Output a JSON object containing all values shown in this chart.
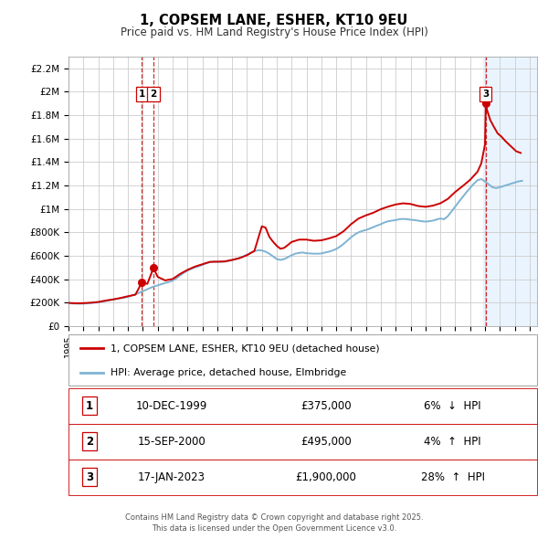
{
  "title": "1, COPSEM LANE, ESHER, KT10 9EU",
  "subtitle": "Price paid vs. HM Land Registry's House Price Index (HPI)",
  "ylabel_ticks": [
    "£0",
    "£200K",
    "£400K",
    "£600K",
    "£800K",
    "£1M",
    "£1.2M",
    "£1.4M",
    "£1.6M",
    "£1.8M",
    "£2M",
    "£2.2M"
  ],
  "ytick_vals": [
    0,
    200000,
    400000,
    600000,
    800000,
    1000000,
    1200000,
    1400000,
    1600000,
    1800000,
    2000000,
    2200000
  ],
  "xmin": 1995.0,
  "xmax": 2026.5,
  "ymin": 0,
  "ymax": 2300000,
  "legend_line1": "1, COPSEM LANE, ESHER, KT10 9EU (detached house)",
  "legend_line2": "HPI: Average price, detached house, Elmbridge",
  "line_color_red": "#cc0000",
  "line_color_blue": "#7fb3d3",
  "transactions": [
    {
      "num": 1,
      "date": "10-DEC-1999",
      "price": 375000,
      "pct": "6%",
      "dir": "↓",
      "x": 1999.94
    },
    {
      "num": 2,
      "date": "15-SEP-2000",
      "price": 495000,
      "pct": "4%",
      "dir": "↑",
      "x": 2000.71
    },
    {
      "num": 3,
      "date": "17-JAN-2023",
      "price": 1900000,
      "pct": "28%",
      "dir": "↑",
      "x": 2023.05
    }
  ],
  "footer": "Contains HM Land Registry data © Crown copyright and database right 2025.\nThis data is licensed under the Open Government Licence v3.0.",
  "bg_color": "#ffffff",
  "grid_color": "#cccccc",
  "shade_color": "#ddeeff",
  "hpi_data": [
    [
      1995.0,
      195000
    ],
    [
      1995.25,
      193000
    ],
    [
      1995.5,
      192000
    ],
    [
      1995.75,
      191000
    ],
    [
      1996.0,
      192000
    ],
    [
      1996.25,
      194000
    ],
    [
      1996.5,
      196000
    ],
    [
      1996.75,
      199000
    ],
    [
      1997.0,
      202000
    ],
    [
      1997.25,
      208000
    ],
    [
      1997.5,
      214000
    ],
    [
      1997.75,
      220000
    ],
    [
      1998.0,
      225000
    ],
    [
      1998.25,
      232000
    ],
    [
      1998.5,
      238000
    ],
    [
      1998.75,
      243000
    ],
    [
      1999.0,
      249000
    ],
    [
      1999.25,
      260000
    ],
    [
      1999.5,
      272000
    ],
    [
      1999.75,
      285000
    ],
    [
      2000.0,
      298000
    ],
    [
      2000.25,
      312000
    ],
    [
      2000.5,
      326000
    ],
    [
      2000.75,
      338000
    ],
    [
      2001.0,
      348000
    ],
    [
      2001.25,
      358000
    ],
    [
      2001.5,
      368000
    ],
    [
      2001.75,
      376000
    ],
    [
      2002.0,
      388000
    ],
    [
      2002.25,
      408000
    ],
    [
      2002.5,
      432000
    ],
    [
      2002.75,
      455000
    ],
    [
      2003.0,
      473000
    ],
    [
      2003.25,
      488000
    ],
    [
      2003.5,
      500000
    ],
    [
      2003.75,
      510000
    ],
    [
      2004.0,
      522000
    ],
    [
      2004.25,
      535000
    ],
    [
      2004.5,
      545000
    ],
    [
      2004.75,
      550000
    ],
    [
      2005.0,
      548000
    ],
    [
      2005.25,
      548000
    ],
    [
      2005.5,
      550000
    ],
    [
      2005.75,
      556000
    ],
    [
      2006.0,
      562000
    ],
    [
      2006.25,
      572000
    ],
    [
      2006.5,
      582000
    ],
    [
      2006.75,
      595000
    ],
    [
      2007.0,
      610000
    ],
    [
      2007.25,
      625000
    ],
    [
      2007.5,
      638000
    ],
    [
      2007.75,
      648000
    ],
    [
      2008.0,
      645000
    ],
    [
      2008.25,
      635000
    ],
    [
      2008.5,
      618000
    ],
    [
      2008.75,
      595000
    ],
    [
      2009.0,
      572000
    ],
    [
      2009.25,
      565000
    ],
    [
      2009.5,
      572000
    ],
    [
      2009.75,
      588000
    ],
    [
      2010.0,
      605000
    ],
    [
      2010.25,
      618000
    ],
    [
      2010.5,
      625000
    ],
    [
      2010.75,
      628000
    ],
    [
      2011.0,
      622000
    ],
    [
      2011.25,
      620000
    ],
    [
      2011.5,
      618000
    ],
    [
      2011.75,
      618000
    ],
    [
      2012.0,
      620000
    ],
    [
      2012.25,
      628000
    ],
    [
      2012.5,
      635000
    ],
    [
      2012.75,
      645000
    ],
    [
      2013.0,
      658000
    ],
    [
      2013.25,
      678000
    ],
    [
      2013.5,
      702000
    ],
    [
      2013.75,
      730000
    ],
    [
      2014.0,
      758000
    ],
    [
      2014.25,
      782000
    ],
    [
      2014.5,
      800000
    ],
    [
      2014.75,
      812000
    ],
    [
      2015.0,
      820000
    ],
    [
      2015.25,
      832000
    ],
    [
      2015.5,
      845000
    ],
    [
      2015.75,
      858000
    ],
    [
      2016.0,
      870000
    ],
    [
      2016.25,
      885000
    ],
    [
      2016.5,
      895000
    ],
    [
      2016.75,
      900000
    ],
    [
      2017.0,
      905000
    ],
    [
      2017.25,
      912000
    ],
    [
      2017.5,
      915000
    ],
    [
      2017.75,
      912000
    ],
    [
      2018.0,
      908000
    ],
    [
      2018.25,
      905000
    ],
    [
      2018.5,
      900000
    ],
    [
      2018.75,
      895000
    ],
    [
      2019.0,
      892000
    ],
    [
      2019.25,
      895000
    ],
    [
      2019.5,
      900000
    ],
    [
      2019.75,
      910000
    ],
    [
      2020.0,
      918000
    ],
    [
      2020.25,
      912000
    ],
    [
      2020.5,
      938000
    ],
    [
      2020.75,
      978000
    ],
    [
      2021.0,
      1020000
    ],
    [
      2021.25,
      1062000
    ],
    [
      2021.5,
      1102000
    ],
    [
      2021.75,
      1142000
    ],
    [
      2022.0,
      1178000
    ],
    [
      2022.25,
      1215000
    ],
    [
      2022.5,
      1245000
    ],
    [
      2022.75,
      1255000
    ],
    [
      2023.0,
      1235000
    ],
    [
      2023.25,
      1210000
    ],
    [
      2023.5,
      1185000
    ],
    [
      2023.75,
      1178000
    ],
    [
      2024.0,
      1185000
    ],
    [
      2024.25,
      1195000
    ],
    [
      2024.5,
      1205000
    ],
    [
      2024.75,
      1215000
    ],
    [
      2025.0,
      1225000
    ],
    [
      2025.25,
      1235000
    ],
    [
      2025.5,
      1240000
    ]
  ],
  "price_data": [
    [
      1995.0,
      198000
    ],
    [
      1995.5,
      195000
    ],
    [
      1996.0,
      196000
    ],
    [
      1996.5,
      200000
    ],
    [
      1997.0,
      206000
    ],
    [
      1997.5,
      218000
    ],
    [
      1998.0,
      228000
    ],
    [
      1998.5,
      240000
    ],
    [
      1999.0,
      255000
    ],
    [
      1999.5,
      268000
    ],
    [
      1999.94,
      375000
    ],
    [
      2000.3,
      360000
    ],
    [
      2000.71,
      495000
    ],
    [
      2001.0,
      420000
    ],
    [
      2001.5,
      390000
    ],
    [
      2002.0,
      402000
    ],
    [
      2002.5,
      445000
    ],
    [
      2003.0,
      480000
    ],
    [
      2003.5,
      508000
    ],
    [
      2004.0,
      528000
    ],
    [
      2004.5,
      548000
    ],
    [
      2005.0,
      550000
    ],
    [
      2005.5,
      552000
    ],
    [
      2006.0,
      565000
    ],
    [
      2006.5,
      580000
    ],
    [
      2007.0,
      605000
    ],
    [
      2007.5,
      642000
    ],
    [
      2008.0,
      852000
    ],
    [
      2008.25,
      840000
    ],
    [
      2008.5,
      762000
    ],
    [
      2008.75,
      720000
    ],
    [
      2009.0,
      685000
    ],
    [
      2009.25,
      660000
    ],
    [
      2009.5,
      668000
    ],
    [
      2009.75,
      692000
    ],
    [
      2010.0,
      718000
    ],
    [
      2010.5,
      738000
    ],
    [
      2011.0,
      738000
    ],
    [
      2011.5,
      728000
    ],
    [
      2012.0,
      732000
    ],
    [
      2012.5,
      748000
    ],
    [
      2013.0,
      768000
    ],
    [
      2013.5,
      810000
    ],
    [
      2014.0,
      870000
    ],
    [
      2014.5,
      918000
    ],
    [
      2015.0,
      945000
    ],
    [
      2015.5,
      968000
    ],
    [
      2016.0,
      998000
    ],
    [
      2016.5,
      1020000
    ],
    [
      2017.0,
      1038000
    ],
    [
      2017.5,
      1048000
    ],
    [
      2018.0,
      1042000
    ],
    [
      2018.5,
      1025000
    ],
    [
      2019.0,
      1018000
    ],
    [
      2019.5,
      1028000
    ],
    [
      2020.0,
      1048000
    ],
    [
      2020.5,
      1085000
    ],
    [
      2021.0,
      1145000
    ],
    [
      2021.5,
      1195000
    ],
    [
      2022.0,
      1248000
    ],
    [
      2022.5,
      1318000
    ],
    [
      2022.75,
      1388000
    ],
    [
      2023.0,
      1550000
    ],
    [
      2023.05,
      1900000
    ],
    [
      2023.15,
      1840000
    ],
    [
      2023.35,
      1760000
    ],
    [
      2023.6,
      1700000
    ],
    [
      2023.85,
      1645000
    ],
    [
      2024.1,
      1618000
    ],
    [
      2024.35,
      1582000
    ],
    [
      2024.6,
      1552000
    ],
    [
      2024.85,
      1522000
    ],
    [
      2025.1,
      1492000
    ],
    [
      2025.4,
      1478000
    ]
  ]
}
